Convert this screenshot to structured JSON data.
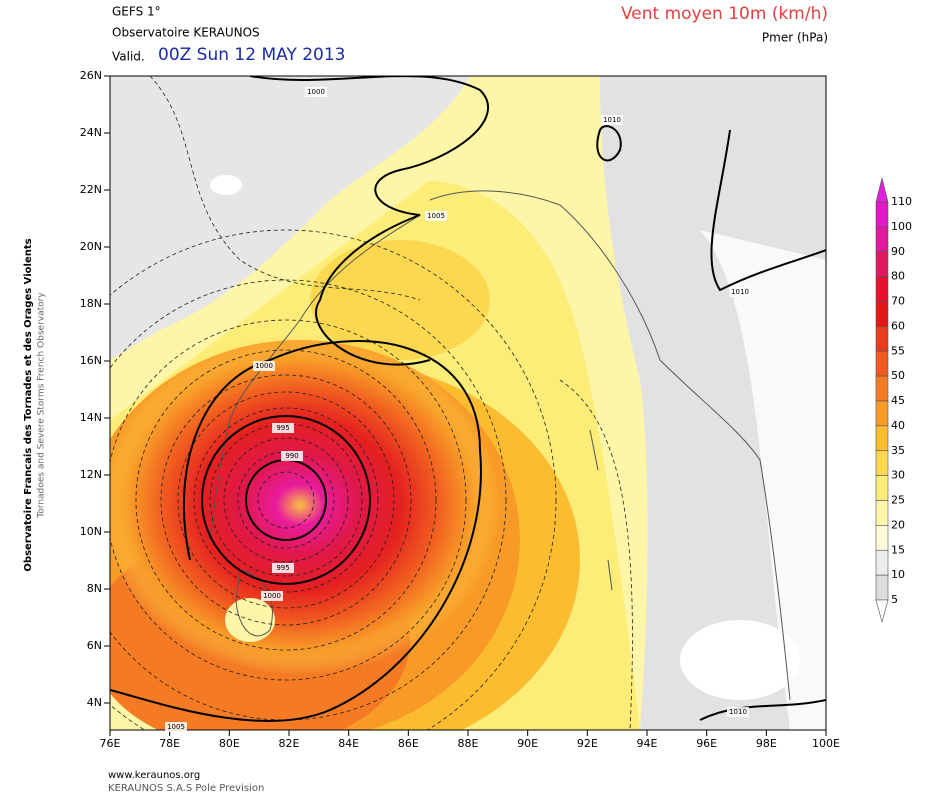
{
  "header": {
    "model": "GEFS 1°",
    "source": "Observatoire KERAUNOS",
    "valid_prefix": "Valid.",
    "valid_time": "00Z Sun 12 MAY 2013",
    "parameter": "Vent moyen 10m (km/h)",
    "secondary": "Pmer (hPa)"
  },
  "axes": {
    "lon_labels": [
      "76E",
      "78E",
      "80E",
      "82E",
      "84E",
      "86E",
      "88E",
      "90E",
      "92E",
      "94E",
      "96E",
      "98E",
      "100E"
    ],
    "lat_labels": [
      "26N",
      "24N",
      "22N",
      "20N",
      "18N",
      "16N",
      "14N",
      "12N",
      "10N",
      "8N",
      "6N",
      "4N"
    ]
  },
  "colorbar": {
    "labels": [
      110,
      100,
      90,
      80,
      70,
      60,
      55,
      50,
      45,
      40,
      35,
      30,
      25,
      20,
      15,
      10,
      5
    ]
  },
  "contour_labels": [
    "1000",
    "1010",
    "1005",
    "1010",
    "1000",
    "995",
    "990",
    "995",
    "1000",
    "1010",
    "1005"
  ],
  "side_text": [
    "Observatoire Francais des Tornades et des Orages Violents",
    "Tornadoes and Severe Storms French Observatory"
  ],
  "footer": [
    "www.keraunos.org",
    "KERAUNOS S.A.S Pole Prevision"
  ]
}
